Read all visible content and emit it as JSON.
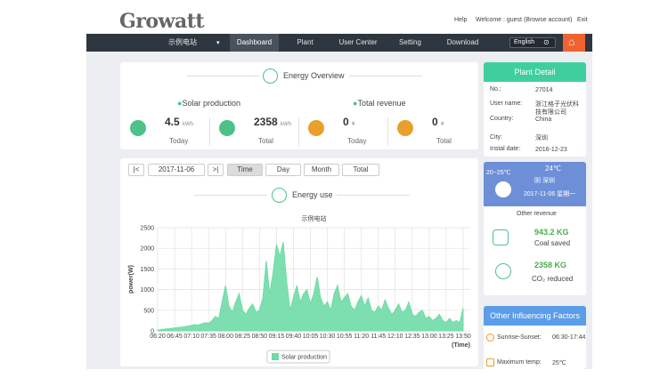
{
  "header": {
    "logo": "Growatt",
    "help": "Help",
    "welcome": "Welcome : guest (Browse account)",
    "exit": "Exit"
  },
  "nav": {
    "plant_select": "示例电站",
    "items": [
      "Dashboard",
      "Plant",
      "User Center",
      "Setting",
      "Download"
    ],
    "active_index": 0,
    "language": "English"
  },
  "energy_overview": {
    "title": "Energy Overview",
    "solar_label": "Solar production",
    "revenue_label": "Total revenue",
    "stats": [
      {
        "value": 4.5,
        "unit": "kWh",
        "label": "Today"
      },
      {
        "value": 2358,
        "unit": "kWh",
        "label": "Total"
      },
      {
        "value": 0,
        "unit": "¥",
        "label": "Today"
      },
      {
        "value": 0,
        "unit": "¥",
        "label": "Total"
      }
    ]
  },
  "energy_controls": {
    "first": "|<",
    "date": "2017-11-06",
    "last": ">|",
    "buttons": [
      "Time",
      "Day",
      "Month",
      "Total"
    ],
    "active_button": 0,
    "section_title": "Energy use"
  },
  "chart_data": {
    "type": "area",
    "title": "示例电站",
    "y_label": "power(W)",
    "x_label": "(Time)",
    "categories": [
      "06:20",
      null,
      null,
      null,
      null,
      "06:45",
      null,
      null,
      null,
      null,
      "07:10",
      null,
      null,
      null,
      null,
      "07:35",
      null,
      null,
      null,
      null,
      "08:00",
      null,
      null,
      null,
      null,
      "08:25",
      null,
      null,
      null,
      null,
      "08:50",
      null,
      null,
      null,
      null,
      "09:15",
      null,
      null,
      null,
      null,
      "09:40",
      null,
      null,
      null,
      null,
      "10:05",
      null,
      null,
      null,
      null,
      "10:30",
      null,
      null,
      null,
      null,
      "10:55",
      null,
      null,
      null,
      null,
      "11:20",
      null,
      null,
      null,
      null,
      "11:45",
      null,
      null,
      null,
      null,
      "12:10",
      null,
      null,
      null,
      null,
      "12:35",
      null,
      null,
      null,
      null,
      "13:00",
      null,
      null,
      null,
      null,
      "13:25",
      null,
      null,
      null,
      null,
      "13:50"
    ],
    "series": [
      {
        "name": "Solar production",
        "color": "#6fdba6",
        "values": [
          20,
          30,
          40,
          50,
          60,
          70,
          80,
          90,
          100,
          120,
          130,
          150,
          140,
          170,
          200,
          180,
          250,
          350,
          300,
          700,
          1100,
          600,
          450,
          700,
          900,
          500,
          400,
          550,
          650,
          450,
          500,
          800,
          1700,
          900,
          1400,
          2100,
          1800,
          2150,
          1200,
          500,
          800,
          1100,
          700,
          900,
          1000,
          650,
          900,
          1300,
          800,
          600,
          700,
          500,
          900,
          1100,
          700,
          800,
          900,
          600,
          500,
          700,
          850,
          600,
          800,
          500,
          450,
          600,
          500,
          750,
          550,
          400,
          500,
          650,
          450,
          500,
          700,
          400,
          350,
          450,
          500,
          300,
          350,
          250,
          300,
          400,
          250,
          200,
          300,
          200,
          250,
          200,
          550
        ]
      }
    ],
    "ylim": [
      0,
      2500
    ],
    "yticks": [
      0,
      500,
      1000,
      1500,
      2000,
      2500
    ],
    "grid": true
  },
  "plant_detail": {
    "title": "Plant Detail",
    "rows": [
      [
        "No.:",
        "27014"
      ],
      [
        "User name:",
        "浙江格子光伏科技有限公司"
      ],
      [
        "Country:",
        "China"
      ],
      [
        "City:",
        "深圳"
      ],
      [
        "Instal date:",
        "2016-12-23"
      ]
    ]
  },
  "weather": {
    "range": "20~25℃",
    "temp": "24℃",
    "condition": "阴 深圳",
    "date": "2017-11-06 星期一"
  },
  "other_revenue": {
    "title": "Other revenue",
    "items": [
      {
        "value": "943.2 KG",
        "label": "Coal saved"
      },
      {
        "value": "2358 KG",
        "label": "CO₂ reduced"
      }
    ]
  },
  "factors": {
    "title": "Other Influencing Factors",
    "rows": [
      [
        "Sunrise-Sunset:",
        "06:30-17:44"
      ],
      [
        "Maximum temp:",
        "25℃"
      ]
    ]
  }
}
